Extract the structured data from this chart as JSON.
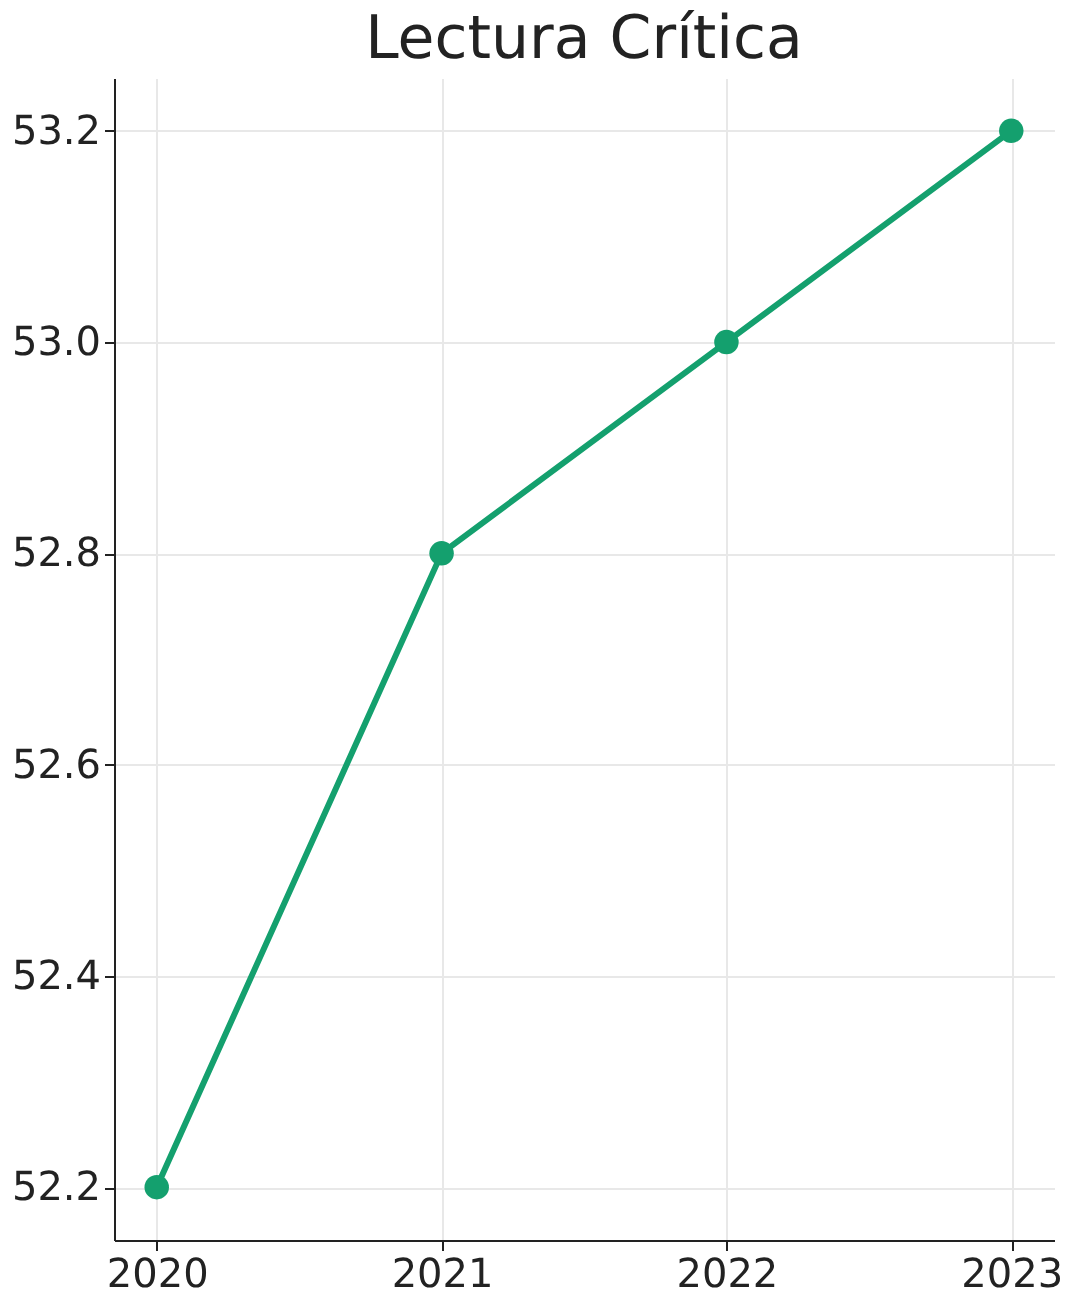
{
  "chart_data": {
    "type": "line",
    "title": "Lectura Crítica",
    "x": [
      2020,
      2021,
      2022,
      2023
    ],
    "series": [
      {
        "color": "#14a06e",
        "values": [
          52.2,
          52.8,
          53.0,
          53.2
        ]
      }
    ],
    "xlim": [
      2019.85,
      2023.15
    ],
    "xticks": [
      2020,
      2021,
      2022,
      2023
    ],
    "ylim": [
      52.15,
      53.25
    ],
    "yticks": [
      {
        "value": 52.2,
        "label": "52.2"
      },
      {
        "value": 52.4,
        "label": "52.4"
      },
      {
        "value": 52.6,
        "label": "52.6"
      },
      {
        "value": 52.8,
        "label": "52.8"
      },
      {
        "value": 53.0,
        "label": "53.0"
      },
      {
        "value": 53.2,
        "label": "53.2"
      }
    ],
    "grid": true,
    "marker": "circle",
    "line_style": "solid"
  }
}
